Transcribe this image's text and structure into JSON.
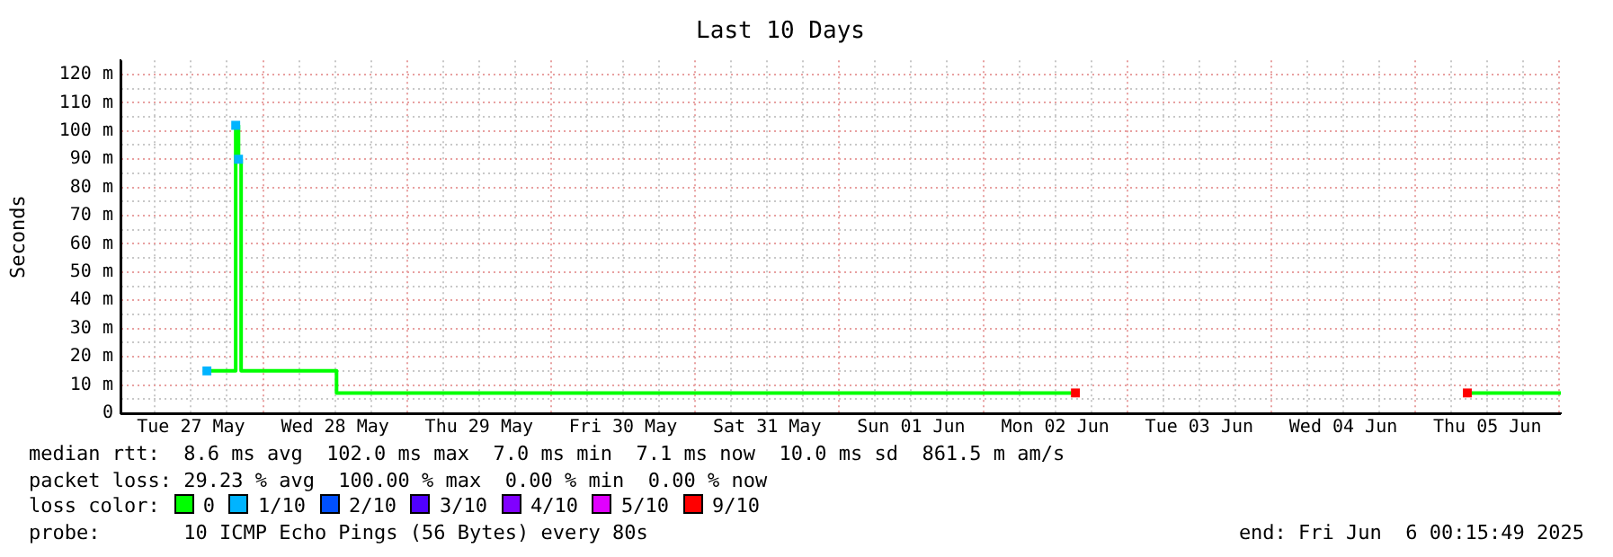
{
  "chart_data": {
    "type": "step",
    "title": "Last 10 Days",
    "ylabel": "Seconds",
    "legend_title": "loss color:",
    "legend": "bottom",
    "grid": true,
    "xlim": [
      "2025-05-27T00:15",
      "2025-06-06T00:15"
    ],
    "xticks": [
      {
        "value": "2025-05-27T06:00",
        "label": null
      },
      {
        "value": "2025-05-27T12:00",
        "label": "Tue 27 May"
      },
      {
        "value": "2025-05-27T18:00",
        "label": null
      },
      {
        "value": "2025-05-28T00:00",
        "label": null
      },
      {
        "value": "2025-05-28T06:00",
        "label": null
      },
      {
        "value": "2025-05-28T12:00",
        "label": "Wed 28 May"
      },
      {
        "value": "2025-05-28T18:00",
        "label": null
      },
      {
        "value": "2025-05-29T00:00",
        "label": null
      },
      {
        "value": "2025-05-29T06:00",
        "label": null
      },
      {
        "value": "2025-05-29T12:00",
        "label": "Thu 29 May"
      },
      {
        "value": "2025-05-29T18:00",
        "label": null
      },
      {
        "value": "2025-05-30T00:00",
        "label": null
      },
      {
        "value": "2025-05-30T06:00",
        "label": null
      },
      {
        "value": "2025-05-30T12:00",
        "label": "Fri 30 May"
      },
      {
        "value": "2025-05-30T18:00",
        "label": null
      },
      {
        "value": "2025-05-31T00:00",
        "label": null
      },
      {
        "value": "2025-05-31T06:00",
        "label": null
      },
      {
        "value": "2025-05-31T12:00",
        "label": "Sat 31 May"
      },
      {
        "value": "2025-05-31T18:00",
        "label": null
      },
      {
        "value": "2025-06-01T00:00",
        "label": null
      },
      {
        "value": "2025-06-01T06:00",
        "label": null
      },
      {
        "value": "2025-06-01T12:00",
        "label": "Sun 01 Jun"
      },
      {
        "value": "2025-06-01T18:00",
        "label": null
      },
      {
        "value": "2025-06-02T00:00",
        "label": null
      },
      {
        "value": "2025-06-02T06:00",
        "label": null
      },
      {
        "value": "2025-06-02T12:00",
        "label": "Mon 02 Jun"
      },
      {
        "value": "2025-06-02T18:00",
        "label": null
      },
      {
        "value": "2025-06-03T00:00",
        "label": null
      },
      {
        "value": "2025-06-03T06:00",
        "label": null
      },
      {
        "value": "2025-06-03T12:00",
        "label": "Tue 03 Jun"
      },
      {
        "value": "2025-06-03T18:00",
        "label": null
      },
      {
        "value": "2025-06-04T00:00",
        "label": null
      },
      {
        "value": "2025-06-04T06:00",
        "label": null
      },
      {
        "value": "2025-06-04T12:00",
        "label": "Wed 04 Jun"
      },
      {
        "value": "2025-06-04T18:00",
        "label": null
      },
      {
        "value": "2025-06-05T00:00",
        "label": null
      },
      {
        "value": "2025-06-05T06:00",
        "label": null
      },
      {
        "value": "2025-06-05T12:00",
        "label": "Thu 05 Jun"
      },
      {
        "value": "2025-06-05T18:00",
        "label": null
      },
      {
        "value": "2025-06-06T00:00",
        "label": null
      }
    ],
    "ylim": [
      0,
      125
    ],
    "yticks": [
      {
        "value": 0,
        "label": "0"
      },
      {
        "value": 5,
        "label": null
      },
      {
        "value": 10,
        "label": "10 m"
      },
      {
        "value": 15,
        "label": null
      },
      {
        "value": 20,
        "label": "20 m"
      },
      {
        "value": 25,
        "label": null
      },
      {
        "value": 30,
        "label": "30 m"
      },
      {
        "value": 35,
        "label": null
      },
      {
        "value": 40,
        "label": "40 m"
      },
      {
        "value": 45,
        "label": null
      },
      {
        "value": 50,
        "label": "50 m"
      },
      {
        "value": 55,
        "label": null
      },
      {
        "value": 60,
        "label": "60 m"
      },
      {
        "value": 65,
        "label": null
      },
      {
        "value": 70,
        "label": "70 m"
      },
      {
        "value": 75,
        "label": null
      },
      {
        "value": 80,
        "label": "80 m"
      },
      {
        "value": 85,
        "label": null
      },
      {
        "value": 90,
        "label": "90 m"
      },
      {
        "value": 95,
        "label": null
      },
      {
        "value": 100,
        "label": "100 m"
      },
      {
        "value": 105,
        "label": null
      },
      {
        "value": 110,
        "label": "110 m"
      },
      {
        "value": 115,
        "label": null
      },
      {
        "value": 120,
        "label": "120 m"
      }
    ],
    "series": [
      {
        "name": "0",
        "color": "#00ff00",
        "marker": "none",
        "x": [
          "2025-05-27T14:39",
          "2025-05-27T19:27",
          "2025-05-27T19:55",
          "2025-05-27T20:21",
          "2025-05-28T12:15",
          "2025-06-02T15:22",
          "2025-06-02T15:23",
          "2025-06-05T08:40",
          "2025-06-06T00:15"
        ],
        "values": [
          15,
          102,
          90,
          15,
          7.2,
          7.2,
          null,
          7.2,
          7.2
        ]
      },
      {
        "name": "1/10",
        "type": "scatter",
        "color": "#00b4ff",
        "marker": "square",
        "x": [
          "2025-05-27T14:39",
          "2025-05-27T19:27",
          "2025-05-27T19:55"
        ],
        "values": [
          15,
          102,
          90
        ]
      },
      {
        "name": "2/10",
        "type": "scatter",
        "color": "#0050ff",
        "marker": "square"
      },
      {
        "name": "3/10",
        "type": "scatter",
        "color": "#5000ff",
        "marker": "square"
      },
      {
        "name": "4/10",
        "type": "scatter",
        "color": "#8000ff",
        "marker": "square"
      },
      {
        "name": "5/10",
        "type": "scatter",
        "color": "#e000ff",
        "marker": "square"
      },
      {
        "name": "9/10",
        "type": "scatter",
        "color": "#ff0000",
        "marker": "square",
        "x": [
          "2025-06-02T15:22",
          "2025-06-05T08:40"
        ],
        "values": [
          7.2,
          7.2
        ]
      }
    ],
    "annotations": [
      "median rtt:  8.6 ms avg  102.0 ms max  7.0 ms min  7.1 ms now  10.0 ms sd  861.5 m am/s",
      "packet loss: 29.23 % avg  100.00 % max  0.00 % min  0.00 % now",
      "probe:       10 ICMP Echo Pings (56 Bytes) every 80s",
      "end: Fri Jun  6 00:15:49 2025"
    ]
  }
}
